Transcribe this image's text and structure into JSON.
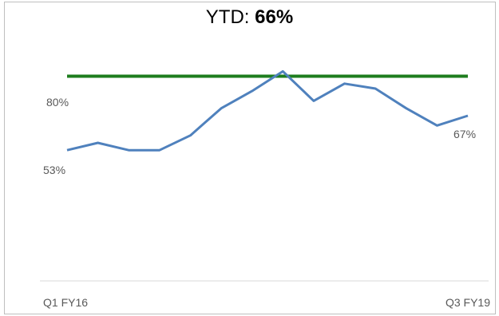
{
  "header": {
    "ytd_label": "YTD: ",
    "ytd_value": "66%"
  },
  "colors": {
    "series": "#4f81bd",
    "target": "#1e7d1e",
    "baseline": "#d9d9d9",
    "label": "#595959"
  },
  "chart_data": {
    "type": "line",
    "title": "YTD: 66%",
    "x_axis_labels": [
      "Q1 FY16",
      "Q3 FY19"
    ],
    "ylim": [
      0,
      100
    ],
    "grid": false,
    "legend": "none",
    "series": [
      {
        "values": [
          53,
          56,
          53,
          53,
          59,
          70,
          77,
          85,
          73,
          80,
          78,
          70,
          63,
          67
        ]
      },
      {
        "values": [
          83,
          83,
          83,
          83,
          83,
          83,
          83,
          83,
          83,
          83,
          83,
          83,
          83,
          83
        ]
      }
    ],
    "annotations": [
      "80%",
      "53%",
      "67%"
    ]
  }
}
